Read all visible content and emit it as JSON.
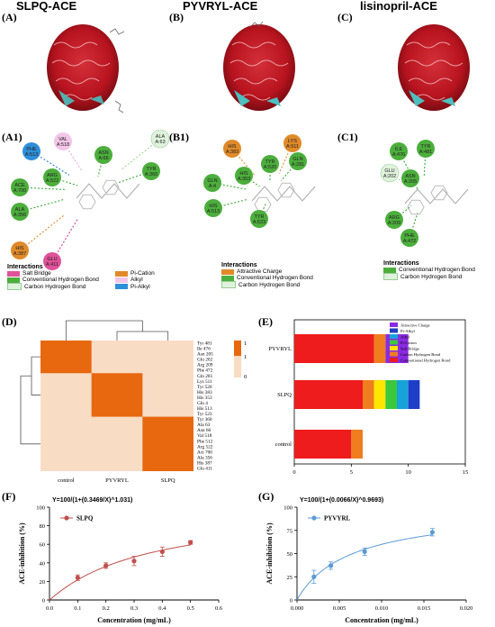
{
  "top": {
    "A": {
      "letter": "(A)",
      "title": "SLPQ-ACE"
    },
    "B": {
      "letter": "(B)",
      "title": "PYVRYL-ACE"
    },
    "C": {
      "letter": "(C)",
      "title": "lisinopril-ACE"
    }
  },
  "interaction_panels": {
    "A1": {
      "letter": "(A1)",
      "residues": [
        {
          "name": "PHE\nA:513",
          "type": "pi-alkyl"
        },
        {
          "name": "VAL\nA:518",
          "type": "alkyl"
        },
        {
          "name": "ARG\nA:522",
          "type": "hbond"
        },
        {
          "name": "ACE\nA:700",
          "type": "hbond"
        },
        {
          "name": "ALA\nA:356",
          "type": "hbond"
        },
        {
          "name": "ASN\nA:66",
          "type": "hbond"
        },
        {
          "name": "ALA\nA:63",
          "type": "carbon"
        },
        {
          "name": "TYR\nA:360",
          "type": "hbond"
        },
        {
          "name": "HIS\nA:387",
          "type": "pi-cation"
        },
        {
          "name": "GLU\nA:411",
          "type": "salt"
        }
      ],
      "legend_title": "Interactions",
      "legend": [
        {
          "label": "Salt Bridge",
          "color": "#e0529a"
        },
        {
          "label": "Conventional Hydrogen Bond",
          "color": "#4cae3c"
        },
        {
          "label": "Carbon Hydrogen Bond",
          "color": "#dff2dc"
        },
        {
          "label": "Pi-Cation",
          "color": "#e08a2a"
        },
        {
          "label": "Alkyl",
          "color": "#f3c6e8"
        },
        {
          "label": "Pi-Alkyl",
          "color": "#2f8fd8"
        }
      ]
    },
    "B1": {
      "letter": "(B1)",
      "residues": [
        {
          "name": "HIS\nA:383",
          "type": "attractive"
        },
        {
          "name": "LYS\nA:511",
          "type": "attractive"
        },
        {
          "name": "GLN\nA:4",
          "type": "hbond"
        },
        {
          "name": "TYR\nA:520",
          "type": "hbond"
        },
        {
          "name": "GLN\nA:281",
          "type": "hbond"
        },
        {
          "name": "HIS\nA:353",
          "type": "hbond"
        },
        {
          "name": "HIS\nA:513",
          "type": "hbond"
        },
        {
          "name": "TYR\nA:523",
          "type": "hbond"
        }
      ],
      "legend_title": "Interactions",
      "legend": [
        {
          "label": "Attractive Charge",
          "color": "#e08a2a"
        },
        {
          "label": "Conventional Hydrogen Bond",
          "color": "#4cae3c"
        },
        {
          "label": "Carbon Hydrogen Bond",
          "color": "#dff2dc"
        }
      ]
    },
    "C1": {
      "letter": "(C1)",
      "residues": [
        {
          "name": "ILE\nA:476",
          "type": "hbond"
        },
        {
          "name": "TYR\nA:481",
          "type": "hbond"
        },
        {
          "name": "GLU\nA:202",
          "type": "carbon"
        },
        {
          "name": "ASN\nA:205",
          "type": "hbond"
        },
        {
          "name": "ARG\nA:209",
          "type": "hbond"
        },
        {
          "name": "PHE\nA:472",
          "type": "hbond"
        }
      ],
      "legend_title": "Interactions",
      "legend": [
        {
          "label": "Conventional Hydrogen Bond",
          "color": "#4cae3c"
        },
        {
          "label": "Carbon Hydrogen Bond",
          "color": "#dff2dc"
        }
      ]
    }
  },
  "colors": {
    "hbond": "#4cae3c",
    "carbon": "#dff2dc",
    "salt": "#e0529a",
    "pi-cation": "#e08a2a",
    "alkyl": "#f3c6e8",
    "pi-alkyl": "#2f8fd8",
    "attractive": "#e08a2a",
    "heat_hi": "#e8680f",
    "heat_lo": "#f8dcc4",
    "fit_red": "#c0504d",
    "fit_blue": "#5b9bd5"
  },
  "chart_data": [
    {
      "panel": "(D)",
      "type": "heatmap",
      "columns": [
        "control",
        "PYVRYL",
        "SLPQ"
      ],
      "rows": [
        "Tyr 481",
        "Ile 476",
        "Asn 205",
        "Glu 202",
        "Arg 209",
        "Phe 472",
        "Gln 281",
        "Lys 511",
        "Tyr 520",
        "His 383",
        "His 353",
        "Gln 4",
        "His 513",
        "Tyr 523",
        "Tyr 360",
        "Ala 63",
        "Asn 66",
        "Val 518",
        "Phe 512",
        "Arg 522",
        "Act 700",
        "Ala 356",
        "His 387",
        "Glu 411"
      ],
      "groups": {
        "control": [
          0,
          5
        ],
        "PYVRYL": [
          6,
          13
        ],
        "SLPQ": [
          14,
          23
        ]
      },
      "legend_ticks": [
        "1",
        "1",
        "0"
      ]
    },
    {
      "panel": "(E)",
      "type": "bar",
      "orientation": "horizontal-stacked",
      "categories": [
        "control",
        "SLPQ",
        "PYVRYL"
      ],
      "series": [
        {
          "name": "Conventional Hydrogen Bond",
          "color": "#ee1c1c",
          "values": [
            5,
            6,
            7
          ]
        },
        {
          "name": "Carbon Hydrogen Bond",
          "color": "#f07d1e",
          "values": [
            1,
            1,
            1
          ]
        },
        {
          "name": "Salt Bridge",
          "color": "#ffe600",
          "values": [
            0,
            1,
            0
          ]
        },
        {
          "name": "Pi-Cation",
          "color": "#3cc83c",
          "values": [
            0,
            1,
            0
          ]
        },
        {
          "name": "Alkyl",
          "color": "#17a3d9",
          "values": [
            0,
            1,
            0
          ]
        },
        {
          "name": "Pi-Alkyl",
          "color": "#1f3ec7",
          "values": [
            0,
            1,
            0
          ]
        },
        {
          "name": "Attractive Charge",
          "color": "#8a2be2",
          "values": [
            0,
            0,
            2
          ]
        }
      ],
      "xticks": [
        "0",
        "5",
        "10",
        "15"
      ],
      "xlim": [
        0,
        15
      ]
    },
    {
      "panel": "(F)",
      "type": "scatter",
      "equation": "Y=100/(1+(0.3469/X)^1.031)",
      "series": [
        {
          "name": "SLPQ",
          "x": [
            0.1,
            0.2,
            0.3,
            0.4,
            0.5
          ],
          "y": [
            24,
            37,
            42,
            52,
            62
          ],
          "err": [
            3,
            3,
            5,
            5,
            2
          ]
        }
      ],
      "fit": {
        "ec50": 0.3469,
        "hill": 1.031
      },
      "xlabel": "Concentration (mg/mL)",
      "ylabel": "ACE-inhibition (%)",
      "xlim": [
        0,
        0.6
      ],
      "ylim": [
        0,
        100
      ],
      "xticks": [
        "0.0",
        "0.1",
        "0.2",
        "0.3",
        "0.4",
        "0.5",
        "0.6"
      ],
      "yticks": [
        "0",
        "20",
        "40",
        "60",
        "80",
        "100"
      ]
    },
    {
      "panel": "(G)",
      "type": "scatter",
      "equation": "Y=100/(1+(0.0066/X)^0.9693)",
      "series": [
        {
          "name": "PYVYRL",
          "x": [
            0.002,
            0.004,
            0.008,
            0.016
          ],
          "y": [
            25,
            37,
            52,
            73
          ],
          "err": [
            7,
            4,
            4,
            4
          ]
        }
      ],
      "fit": {
        "ec50": 0.0066,
        "hill": 0.9693
      },
      "xlabel": "Concentration (mg/mL)",
      "ylabel": "ACE-inhibition (%)",
      "xlim": [
        0,
        0.02
      ],
      "ylim": [
        0,
        100
      ],
      "xticks": [
        "0.000",
        "0.005",
        "0.010",
        "0.015",
        "0.020"
      ],
      "yticks": [
        "0",
        "25",
        "50",
        "75",
        "100"
      ]
    }
  ]
}
